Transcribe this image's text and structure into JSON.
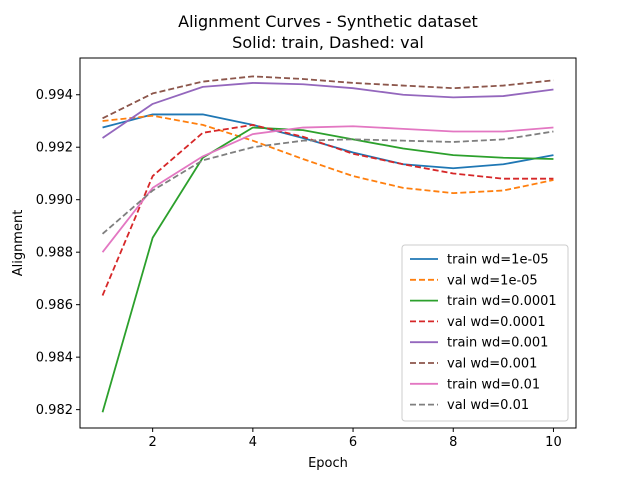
{
  "chart_data": {
    "type": "line",
    "title": "Alignment Curves - Synthetic dataset",
    "subtitle": "Solid: train, Dashed: val",
    "xlabel": "Epoch",
    "ylabel": "Alignment",
    "xlim": [
      0.55,
      10.45
    ],
    "ylim": [
      0.9813,
      0.9954
    ],
    "xticks": [
      2,
      4,
      6,
      8,
      10
    ],
    "yticks": [
      0.982,
      0.984,
      0.986,
      0.988,
      0.99,
      0.992,
      0.994
    ],
    "ytick_labels": [
      "0.982",
      "0.984",
      "0.986",
      "0.988",
      "0.990",
      "0.992",
      "0.994"
    ],
    "grid": false,
    "legend_position": "lower-right",
    "x": [
      1,
      2,
      3,
      4,
      5,
      6,
      7,
      8,
      9,
      10
    ],
    "series": [
      {
        "name": "train wd=1e-05",
        "style": "solid",
        "color": "#1f77b4",
        "values": [
          0.99275,
          0.99325,
          0.99325,
          0.99285,
          0.99235,
          0.9918,
          0.99135,
          0.9912,
          0.99135,
          0.9917
        ]
      },
      {
        "name": "val wd=1e-05",
        "style": "dashed",
        "color": "#ff7f0e",
        "values": [
          0.993,
          0.9932,
          0.99285,
          0.99225,
          0.99155,
          0.9909,
          0.99045,
          0.99025,
          0.99035,
          0.99075
        ]
      },
      {
        "name": "train wd=0.0001",
        "style": "solid",
        "color": "#2ca02c",
        "values": [
          0.9819,
          0.98855,
          0.9916,
          0.99275,
          0.99265,
          0.9923,
          0.99195,
          0.9917,
          0.9916,
          0.99155
        ]
      },
      {
        "name": "val wd=0.0001",
        "style": "dashed",
        "color": "#d62728",
        "values": [
          0.98635,
          0.9909,
          0.99255,
          0.99285,
          0.9924,
          0.99175,
          0.99135,
          0.991,
          0.9908,
          0.9908
        ]
      },
      {
        "name": "train wd=0.001",
        "style": "solid",
        "color": "#9467bd",
        "values": [
          0.99235,
          0.99365,
          0.9943,
          0.99445,
          0.9944,
          0.99425,
          0.994,
          0.9939,
          0.99395,
          0.9942
        ]
      },
      {
        "name": "val wd=0.001",
        "style": "dashed",
        "color": "#8c564b",
        "values": [
          0.9931,
          0.99405,
          0.9945,
          0.9947,
          0.9946,
          0.99445,
          0.99435,
          0.99425,
          0.99435,
          0.99455
        ]
      },
      {
        "name": "train wd=0.01",
        "style": "solid",
        "color": "#e377c2",
        "values": [
          0.988,
          0.99045,
          0.99165,
          0.9925,
          0.99275,
          0.9928,
          0.9927,
          0.9926,
          0.9926,
          0.99275
        ]
      },
      {
        "name": "val wd=0.01",
        "style": "dashed",
        "color": "#7f7f7f",
        "values": [
          0.9887,
          0.99035,
          0.9915,
          0.992,
          0.99225,
          0.9923,
          0.99225,
          0.9922,
          0.9923,
          0.9926
        ]
      }
    ]
  }
}
